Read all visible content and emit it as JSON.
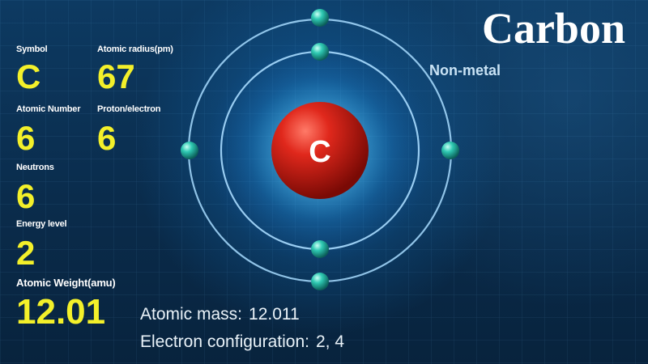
{
  "element": {
    "name": "Carbon",
    "category": "Non-metal",
    "symbol_in_nucleus": "C"
  },
  "stats": {
    "symbol": {
      "label": "Symbol",
      "value": "C"
    },
    "atomic_radius": {
      "label": "Atomic radius(pm)",
      "value": "67"
    },
    "atomic_number": {
      "label": "Atomic Number",
      "value": "6"
    },
    "proton_electron": {
      "label": "Proton/electron",
      "value": "6"
    },
    "neutrons": {
      "label": "Neutrons",
      "value": "6"
    },
    "energy_level": {
      "label": "Energy level",
      "value": "2"
    },
    "atomic_weight": {
      "label": "Atomic Weight(amu)",
      "value": "12.01"
    }
  },
  "details": {
    "atomic_mass_label": "Atomic mass:",
    "atomic_mass_value": "12.011",
    "electron_config_label": "Electron configuration:",
    "electron_config_value": "2, 4"
  },
  "colors": {
    "value_yellow": "#f3f02a",
    "nucleus_red": "#c81c12",
    "electron_teal": "#1fb7a8",
    "orbit_blue": "#9fd9ff"
  }
}
